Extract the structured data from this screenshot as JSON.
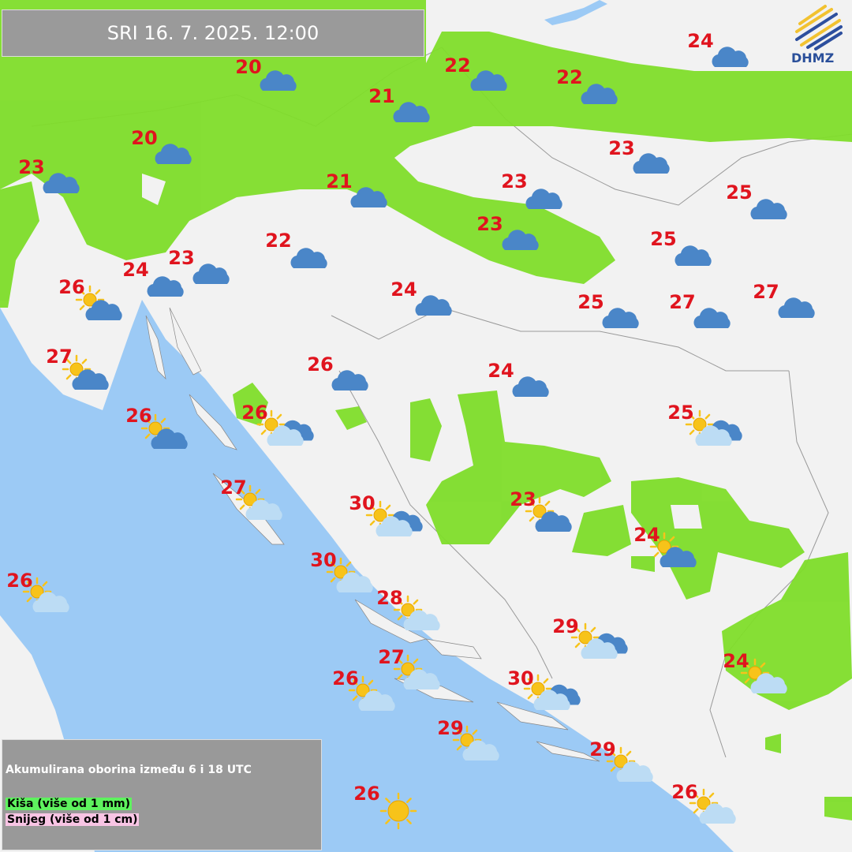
{
  "header": {
    "title": "SRI  16. 7. 2025. 12:00"
  },
  "logo": {
    "text": "DHMZ"
  },
  "legend": {
    "title": "Akumulirana oborina između 6 i 18 UTC",
    "rain": "Kiša (više od 1 mm)",
    "snow": "Snijeg (više od 1 cm)"
  },
  "colors": {
    "sea": "#9ccaf5",
    "land": "#f2f2f2",
    "rain": "#7fdd2a",
    "temp": "#e0141e",
    "cloud_dark": "#4a86c8",
    "cloud_light": "#bcdcf4",
    "sun": "#f7c31a"
  },
  "stations": [
    {
      "temp": "20",
      "icon": "cloud"
    },
    {
      "temp": "22",
      "icon": "cloud"
    },
    {
      "temp": "22",
      "icon": "cloud"
    },
    {
      "temp": "24",
      "icon": "cloud"
    },
    {
      "temp": "21",
      "icon": "cloud"
    },
    {
      "temp": "20",
      "icon": "cloud"
    },
    {
      "temp": "23",
      "icon": "cloud"
    },
    {
      "temp": "23",
      "icon": "cloud"
    },
    {
      "temp": "21",
      "icon": "cloud"
    },
    {
      "temp": "23",
      "icon": "cloud"
    },
    {
      "temp": "25",
      "icon": "cloud"
    },
    {
      "temp": "23",
      "icon": "cloud"
    },
    {
      "temp": "22",
      "icon": "cloud"
    },
    {
      "temp": "25",
      "icon": "cloud"
    },
    {
      "temp": "24",
      "icon": "cloud"
    },
    {
      "temp": "23",
      "icon": "cloud"
    },
    {
      "temp": "26",
      "icon": "sun-dark-cloud"
    },
    {
      "temp": "24",
      "icon": "cloud"
    },
    {
      "temp": "25",
      "icon": "cloud"
    },
    {
      "temp": "27",
      "icon": "cloud"
    },
    {
      "temp": "27",
      "icon": "cloud"
    },
    {
      "temp": "27",
      "icon": "sun-dark-cloud"
    },
    {
      "temp": "26",
      "icon": "cloud"
    },
    {
      "temp": "24",
      "icon": "cloud"
    },
    {
      "temp": "26",
      "icon": "sun-dark-cloud"
    },
    {
      "temp": "26",
      "icon": "sun-mixed-cloud"
    },
    {
      "temp": "25",
      "icon": "sun-mixed-cloud"
    },
    {
      "temp": "27",
      "icon": "sun-light-cloud"
    },
    {
      "temp": "30",
      "icon": "sun-mixed-cloud"
    },
    {
      "temp": "23",
      "icon": "sun-dark-cloud"
    },
    {
      "temp": "24",
      "icon": "sun-dark-cloud"
    },
    {
      "temp": "30",
      "icon": "sun-light-cloud"
    },
    {
      "temp": "26",
      "icon": "sun-light-cloud"
    },
    {
      "temp": "28",
      "icon": "sun-light-cloud"
    },
    {
      "temp": "29",
      "icon": "sun-mixed-cloud"
    },
    {
      "temp": "27",
      "icon": "sun-light-cloud"
    },
    {
      "temp": "24",
      "icon": "sun-light-cloud"
    },
    {
      "temp": "26",
      "icon": "sun-light-cloud"
    },
    {
      "temp": "30",
      "icon": "sun-mixed-cloud"
    },
    {
      "temp": "29",
      "icon": "sun-light-cloud"
    },
    {
      "temp": "29",
      "icon": "sun-light-cloud"
    },
    {
      "temp": "26",
      "icon": "sun"
    },
    {
      "temp": "26",
      "icon": "sun-light-cloud"
    }
  ]
}
